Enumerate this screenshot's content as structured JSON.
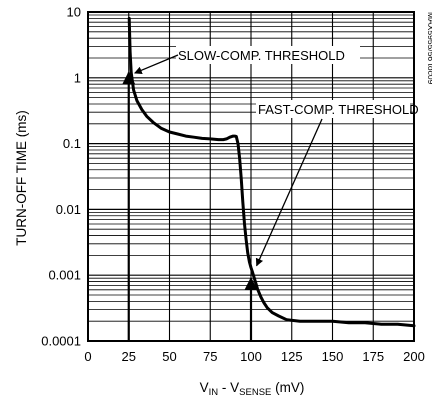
{
  "chart_data": {
    "type": "line",
    "title": "",
    "xlabel": {
      "main": "V",
      "sub1": "IN",
      "mid": " - V",
      "sub2": "SENSE",
      "unit": " (mV)"
    },
    "ylabel": "TURN-OFF TIME (ms)",
    "xlim": [
      0,
      200
    ],
    "ylim": [
      0.0001,
      10
    ],
    "yscale": "log",
    "grid": true,
    "x_ticks": [
      "0",
      "25",
      "50",
      "75",
      "100",
      "125",
      "150",
      "175",
      "200"
    ],
    "y_ticks": [
      "10",
      "1",
      "0.1",
      "0.01",
      "0.001",
      "0.0001"
    ],
    "figure_id": "MAX5955/56 toc09",
    "series": [
      {
        "x": [
          25.3,
          25.8,
          26.5,
          28,
          30,
          33,
          36,
          40,
          45,
          50,
          55,
          60,
          65,
          70,
          75,
          80,
          83,
          85,
          87,
          89,
          90,
          91,
          92,
          93,
          94,
          95,
          96,
          97,
          98,
          99,
          100,
          101,
          102,
          103,
          104,
          106,
          108,
          110,
          113,
          117,
          122,
          130,
          140,
          150,
          160,
          170,
          180,
          190,
          200
        ],
        "y": [
          8.0,
          2.5,
          1.2,
          0.65,
          0.45,
          0.33,
          0.26,
          0.21,
          0.17,
          0.15,
          0.14,
          0.13,
          0.125,
          0.12,
          0.118,
          0.115,
          0.115,
          0.118,
          0.125,
          0.13,
          0.13,
          0.128,
          0.1,
          0.06,
          0.03,
          0.013,
          0.006,
          0.0035,
          0.0022,
          0.0016,
          0.0013,
          0.0011,
          0.0009,
          0.00075,
          0.00062,
          0.00047,
          0.00038,
          0.00032,
          0.00027,
          0.00024,
          0.00021,
          0.0002,
          0.0002,
          0.0002,
          0.00019,
          0.00019,
          0.00018,
          0.00018,
          0.00017
        ]
      }
    ],
    "annotations": [
      {
        "text": "SLOW-COMP. THRESHOLD",
        "x": 25,
        "y": 1.1
      },
      {
        "text": "FAST-COMP. THRESHOLD",
        "x": 101,
        "y": 0.0013
      }
    ],
    "markers": [
      {
        "name": "slow-comp-threshold-marker",
        "x": 25,
        "y_from": 0.0001,
        "y_to": 1.2
      },
      {
        "name": "fast-comp-threshold-marker",
        "x": 100,
        "y_from": 0.0001,
        "y_to": 0.0009
      }
    ]
  }
}
